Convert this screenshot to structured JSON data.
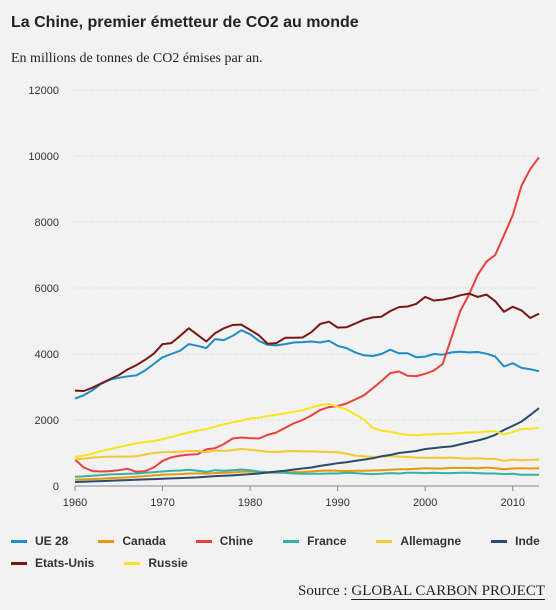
{
  "title": "La Chine, premier émetteur de CO2 au monde",
  "subtitle": "En millions de tonnes de CO2 émises par an.",
  "source": {
    "prefix": "Source : ",
    "link": "GLOBAL CARBON PROJECT"
  },
  "chart_data": {
    "type": "line",
    "title": "La Chine, premier émetteur de CO2 au monde",
    "subtitle": "En millions de tonnes de CO2 émises par an.",
    "xlim": [
      1960,
      2013
    ],
    "ylim": [
      0,
      12000
    ],
    "x_ticks": [
      1960,
      1970,
      1980,
      1990,
      2000,
      2010
    ],
    "y_ticks": [
      0,
      2000,
      4000,
      6000,
      8000,
      10000,
      12000
    ],
    "y_tick_labels": [
      "0",
      "2000",
      "4000",
      "6000",
      "8000",
      "10000",
      "12000"
    ],
    "grid": "horizontal",
    "legend_position": "bottom",
    "x": [
      1960,
      1961,
      1962,
      1963,
      1964,
      1965,
      1966,
      1967,
      1968,
      1969,
      1970,
      1971,
      1972,
      1973,
      1974,
      1975,
      1976,
      1977,
      1978,
      1979,
      1980,
      1981,
      1982,
      1983,
      1984,
      1985,
      1986,
      1987,
      1988,
      1989,
      1990,
      1991,
      1992,
      1993,
      1994,
      1995,
      1996,
      1997,
      1998,
      1999,
      2000,
      2001,
      2002,
      2003,
      2004,
      2005,
      2006,
      2007,
      2008,
      2009,
      2010,
      2011,
      2012,
      2013
    ],
    "series": [
      {
        "name": "UE 28",
        "color": "#1f8dc6",
        "values": [
          2650,
          2750,
          2900,
          3100,
          3220,
          3280,
          3320,
          3350,
          3500,
          3700,
          3900,
          4000,
          4100,
          4300,
          4250,
          4180,
          4450,
          4420,
          4550,
          4720,
          4600,
          4400,
          4280,
          4260,
          4300,
          4350,
          4360,
          4380,
          4350,
          4400,
          4250,
          4180,
          4050,
          3960,
          3940,
          4000,
          4130,
          4020,
          4020,
          3900,
          3920,
          4000,
          3980,
          4050,
          4070,
          4050,
          4060,
          4010,
          3920,
          3620,
          3720,
          3580,
          3540,
          3480
        ]
      },
      {
        "name": "Canada",
        "color": "#e8960c",
        "values": [
          190,
          200,
          210,
          220,
          240,
          250,
          260,
          280,
          300,
          320,
          340,
          350,
          360,
          380,
          380,
          380,
          390,
          400,
          410,
          430,
          440,
          420,
          400,
          400,
          410,
          420,
          420,
          440,
          460,
          470,
          460,
          450,
          460,
          460,
          470,
          480,
          490,
          510,
          510,
          520,
          540,
          530,
          530,
          550,
          550,
          550,
          540,
          560,
          540,
          510,
          530,
          540,
          530,
          540
        ]
      },
      {
        "name": "Chine",
        "color": "#e8413f",
        "values": [
          800,
          560,
          450,
          440,
          450,
          480,
          520,
          430,
          450,
          560,
          760,
          870,
          920,
          950,
          960,
          1110,
          1150,
          1270,
          1440,
          1470,
          1450,
          1440,
          1550,
          1620,
          1760,
          1900,
          2000,
          2140,
          2300,
          2390,
          2420,
          2500,
          2620,
          2750,
          2960,
          3180,
          3420,
          3470,
          3340,
          3330,
          3400,
          3500,
          3700,
          4500,
          5300,
          5800,
          6400,
          6800,
          7000,
          7600,
          8200,
          9100,
          9600,
          9960
        ]
      },
      {
        "name": "France",
        "color": "#32b4a8",
        "values": [
          280,
          290,
          310,
          330,
          350,
          360,
          370,
          380,
          400,
          420,
          440,
          460,
          470,
          490,
          460,
          430,
          480,
          460,
          480,
          500,
          480,
          440,
          420,
          410,
          400,
          380,
          370,
          370,
          370,
          380,
          380,
          400,
          390,
          370,
          360,
          370,
          390,
          380,
          400,
          400,
          390,
          400,
          390,
          390,
          400,
          400,
          390,
          380,
          380,
          360,
          370,
          340,
          340,
          340
        ]
      },
      {
        "name": "Allemagne",
        "color": "#f3c92f",
        "values": [
          810,
          830,
          860,
          880,
          890,
          890,
          890,
          900,
          950,
          1000,
          1020,
          1030,
          1040,
          1060,
          1060,
          1020,
          1080,
          1060,
          1090,
          1120,
          1100,
          1070,
          1040,
          1030,
          1050,
          1060,
          1050,
          1050,
          1040,
          1030,
          1020,
          980,
          920,
          900,
          880,
          890,
          910,
          890,
          880,
          860,
          850,
          860,
          850,
          860,
          840,
          830,
          840,
          820,
          820,
          760,
          800,
          780,
          790,
          800
        ]
      },
      {
        "name": "Inde",
        "color": "#2c4a6e",
        "values": [
          120,
          130,
          140,
          150,
          160,
          170,
          180,
          190,
          200,
          210,
          220,
          230,
          240,
          250,
          260,
          280,
          300,
          310,
          320,
          340,
          360,
          380,
          410,
          440,
          460,
          500,
          530,
          560,
          610,
          650,
          690,
          720,
          760,
          800,
          840,
          900,
          940,
          1000,
          1030,
          1060,
          1120,
          1150,
          1180,
          1200,
          1260,
          1320,
          1380,
          1450,
          1550,
          1700,
          1820,
          1950,
          2150,
          2360
        ]
      },
      {
        "name": "Etats-Unis",
        "color": "#7a1612",
        "values": [
          2890,
          2880,
          2980,
          3110,
          3240,
          3360,
          3530,
          3660,
          3820,
          4010,
          4300,
          4330,
          4550,
          4780,
          4580,
          4380,
          4630,
          4780,
          4880,
          4890,
          4730,
          4570,
          4310,
          4330,
          4490,
          4490,
          4500,
          4660,
          4910,
          4980,
          4800,
          4810,
          4920,
          5040,
          5110,
          5130,
          5300,
          5420,
          5440,
          5520,
          5730,
          5620,
          5650,
          5700,
          5780,
          5830,
          5730,
          5800,
          5600,
          5280,
          5430,
          5320,
          5090,
          5220
        ]
      },
      {
        "name": "Russie",
        "color": "#f7e420",
        "values": [
          880,
          920,
          980,
          1060,
          1120,
          1180,
          1240,
          1290,
          1330,
          1360,
          1420,
          1480,
          1560,
          1620,
          1680,
          1720,
          1800,
          1870,
          1930,
          1980,
          2050,
          2070,
          2120,
          2160,
          2200,
          2250,
          2300,
          2380,
          2450,
          2490,
          2400,
          2320,
          2170,
          2010,
          1760,
          1680,
          1640,
          1590,
          1550,
          1540,
          1560,
          1570,
          1580,
          1580,
          1610,
          1620,
          1630,
          1650,
          1660,
          1560,
          1640,
          1720,
          1740,
          1760
        ]
      }
    ]
  }
}
